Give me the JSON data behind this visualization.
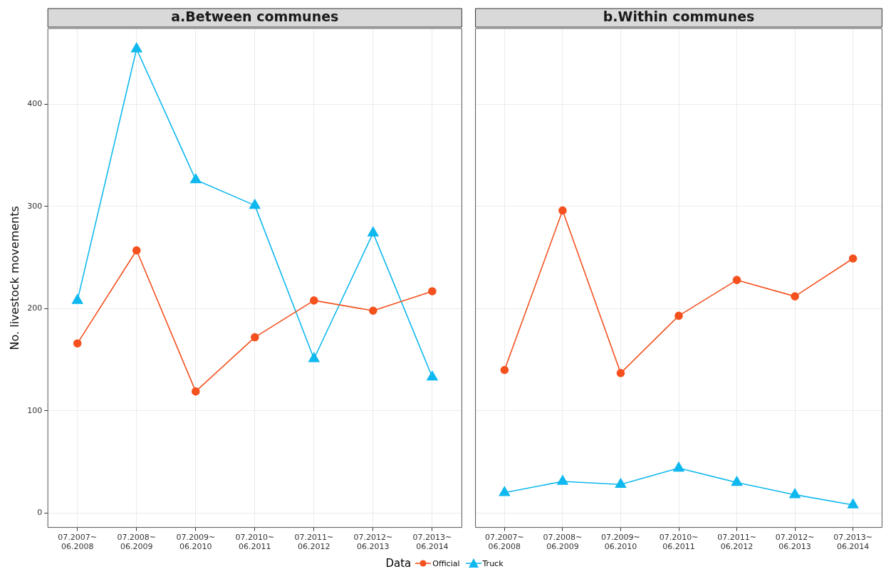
{
  "chart_data": [
    {
      "type": "line",
      "title": "a.Between communes",
      "ylabel": "No. livestock movements",
      "legend_title": "Data",
      "legend": "bottom",
      "grid": true,
      "categories": [
        "07.2007~\n06.2008",
        "07.2008~\n06.2009",
        "07.2009~\n06.2010",
        "07.2010~\n06.2011",
        "07.2011~\n06.2012",
        "07.2012~\n06.2013",
        "07.2013~\n06.2014"
      ],
      "ylim": [
        -14,
        474
      ],
      "yticks": [
        0,
        100,
        200,
        300,
        400
      ],
      "series": [
        {
          "name": "Official",
          "color": "#f4511e",
          "marker": "circle",
          "values": [
            166,
            257,
            119,
            172,
            208,
            198,
            217
          ]
        },
        {
          "name": "Truck",
          "color": "#0fb8ef",
          "marker": "triangle",
          "values": [
            208,
            454,
            326,
            301,
            151,
            274,
            133
          ]
        }
      ]
    },
    {
      "type": "line",
      "title": "b.Within communes",
      "tick_labels": "x",
      "grid": true,
      "categories": [
        "07.2007~\n06.2008",
        "07.2008~\n06.2009",
        "07.2009~\n06.2010",
        "07.2010~\n06.2011",
        "07.2011~\n06.2012",
        "07.2012~\n06.2013",
        "07.2013~\n06.2014"
      ],
      "ylim": [
        -14,
        474
      ],
      "yticks": [
        0,
        100,
        200,
        300,
        400
      ],
      "series": [
        {
          "color": "#f4511e",
          "marker": "circle",
          "values": [
            140,
            296,
            137,
            193,
            228,
            212,
            249
          ]
        },
        {
          "color": "#0fb8ef",
          "marker": "triangle",
          "values": [
            20,
            31,
            28,
            44,
            30,
            18,
            8
          ]
        }
      ]
    }
  ]
}
